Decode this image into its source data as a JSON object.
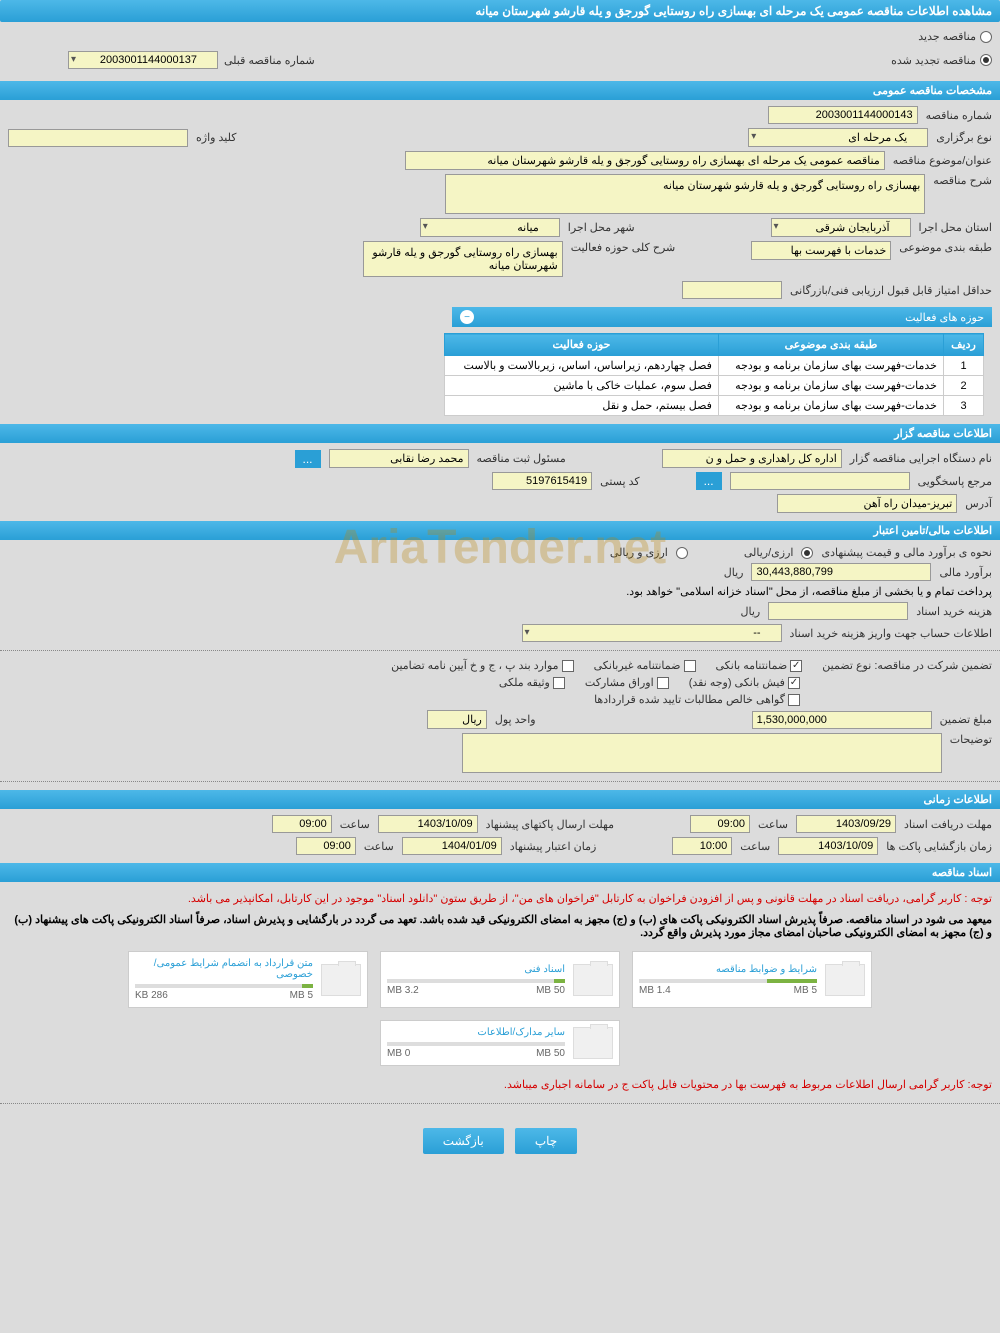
{
  "page_title": "مشاهده اطلاعات مناقصه عمومی یک مرحله ای بهسازی راه روستایی گورجق و یله قارشو شهرستان میانه",
  "tender_type": {
    "new_label": "مناقصه جدید",
    "renewed_label": "مناقصه تجدید شده",
    "prev_number_label": "شماره مناقصه قبلی",
    "prev_number": "2003001144000137"
  },
  "general_info": {
    "section_title": "مشخصات مناقصه عمومی",
    "tender_number_label": "شماره مناقصه",
    "tender_number": "2003001144000143",
    "type_label": "نوع برگزاری",
    "type_value": "یک مرحله ای",
    "keyword_label": "کلید واژه",
    "keyword_value": "",
    "subject_label": "عنوان/موضوع مناقصه",
    "subject_value": "مناقصه عمومی یک مرحله ای بهسازی راه روستایی گورجق و یله قارشو شهرستان میانه",
    "description_label": "شرح مناقصه",
    "description_value": "بهسازی راه روستایی گورجق و یله قارشو شهرستان میانه",
    "province_label": "استان محل اجرا",
    "province_value": "آذربایجان شرقی",
    "city_label": "شهر محل اجرا",
    "city_value": "میانه",
    "classification_label": "طبقه بندی موضوعی",
    "classification_value": "خدمات با فهرست بها",
    "activity_scope_label": "شرح کلی حوزه فعالیت",
    "activity_scope_value": "بهسازی راه روستایی گورجق و یله قارشو شهرستان میانه",
    "min_score_label": "حداقل امتیاز قابل قبول ارزیابی فنی/بازرگانی",
    "min_score_value": ""
  },
  "activity_areas": {
    "panel_title": "حوزه های فعالیت",
    "col_row": "ردیف",
    "col_classification": "طبقه بندی موضوعی",
    "col_area": "حوزه فعالیت",
    "rows": [
      {
        "n": "1",
        "cls": "خدمات-فهرست بهای سازمان برنامه و بودجه",
        "area": "فصل چهاردهم، زیراساس، اساس، زیربالاست  و بالاست"
      },
      {
        "n": "2",
        "cls": "خدمات-فهرست بهای سازمان برنامه و بودجه",
        "area": "فصل سوم، عملیات خاکی با ماشین"
      },
      {
        "n": "3",
        "cls": "خدمات-فهرست بهای سازمان برنامه و بودجه",
        "area": "فصل بیستم، حمل و نقل"
      }
    ]
  },
  "tenderer_info": {
    "section_title": "اطلاعات مناقصه گزار",
    "org_label": "نام دستگاه اجرایی مناقصه گزار",
    "org_value": "اداره کل راهداری و حمل و ن",
    "registrar_label": "مسئول ثبت مناقصه",
    "registrar_value": "محمد رضا نقابی",
    "contact_label": "مرجع پاسخگویی",
    "contact_value": "",
    "postal_label": "کد پستی",
    "postal_value": "5197615419",
    "address_label": "آدرس",
    "address_value": "تبریز-میدان راه آهن"
  },
  "financial": {
    "section_title": "اطلاعات مالی/تامین اعتبار",
    "estimate_method_label": "نحوه ی برآورد مالی و قیمت پیشنهادی",
    "currency_rial_label": "ارزی/ریالی",
    "currency_foreign_label": "ارزی و ریالی",
    "estimate_label": "برآورد مالی",
    "estimate_value": "30,443,880,799",
    "estimate_unit": "ریال",
    "treasury_note": "پرداخت تمام و یا بخشی از مبلغ مناقصه، از محل \"اسناد خزانه اسلامی\" خواهد بود.",
    "doc_cost_label": "هزینه خرید اسناد",
    "doc_cost_value": "",
    "doc_cost_unit": "ریال",
    "account_info_label": "اطلاعات حساب جهت واریز هزینه خرید اسناد",
    "account_info_value": "--"
  },
  "guarantee": {
    "type_label": "تضمین شرکت در مناقصه:   نوع تضمین",
    "bank_guarantee": "ضمانتنامه بانکی",
    "nonbank_guarantee": "ضمانتنامه غیربانکی",
    "bylaw_items": "موارد بند پ ، ج و خ آیین نامه تضامین",
    "bank_receipt": "فیش بانکی (وجه نقد)",
    "partnership_bonds": "اوراق مشارکت",
    "property_deed": "وثیقه ملکی",
    "receivables_cert": "گواهی خالص مطالبات تایید شده قراردادها",
    "amount_label": "مبلغ تضمین",
    "amount_value": "1,530,000,000",
    "unit_label": "واحد پول",
    "unit_value": "ریال",
    "notes_label": "توضیحات",
    "notes_value": ""
  },
  "timing": {
    "section_title": "اطلاعات زمانی",
    "doc_deadline_label": "مهلت دریافت اسناد",
    "doc_deadline_date": "1403/09/29",
    "doc_deadline_time": "09:00",
    "proposal_deadline_label": "مهلت ارسال پاکتهای پیشنهاد",
    "proposal_deadline_date": "1403/10/09",
    "proposal_deadline_time": "09:00",
    "opening_label": "زمان بازگشایی پاکت ها",
    "opening_date": "1403/10/09",
    "opening_time": "10:00",
    "validity_label": "زمان اعتبار پیشنهاد",
    "validity_date": "1404/01/09",
    "validity_time": "09:00",
    "time_label": "ساعت"
  },
  "documents": {
    "section_title": "اسناد مناقصه",
    "note1": "توجه : کاربر گرامی، دریافت اسناد در مهلت قانونی و پس از افزودن فراخوان به کارتابل \"فراخوان های من\"، از طریق ستون \"دانلود اسناد\" موجود در این کارتابل، امکانپذیر می باشد.",
    "note2": "میعهد می شود در اسناد مناقصه. صرفاً پذیرش اسناد الکترونیکی پاکت های (ب) و (ج) مجهز به امضای الکترونیکی قید شده باشد. تعهد می گردد در بارگشایی و پذیرش اسناد، صرفاً اسناد الکترونیکی پاکت های پیشنهاد (ب) و (ج) مجهز به امضای الکترونیکی صاحبان امضای مجاز مورد پذیرش واقع گردد.",
    "files": [
      {
        "title": "شرایط و ضوابط مناقصه",
        "used": "1.4 MB",
        "total": "5 MB",
        "fill": 28
      },
      {
        "title": "اسناد فنی",
        "used": "3.2 MB",
        "total": "50 MB",
        "fill": 6
      },
      {
        "title": "متن قرارداد به انضمام شرایط عمومی/خصوصی",
        "used": "286 KB",
        "total": "5 MB",
        "fill": 6
      },
      {
        "title": "سایر مدارک/اطلاعات",
        "used": "0 MB",
        "total": "50 MB",
        "fill": 0
      }
    ],
    "footer_note": "توجه: کاربر گرامی ارسال اطلاعات مربوط به فهرست بها در محتویات فایل پاکت ج در سامانه اجباری میباشد."
  },
  "buttons": {
    "print": "چاپ",
    "back": "بازگشت"
  },
  "watermark": "AriaTender.net"
}
